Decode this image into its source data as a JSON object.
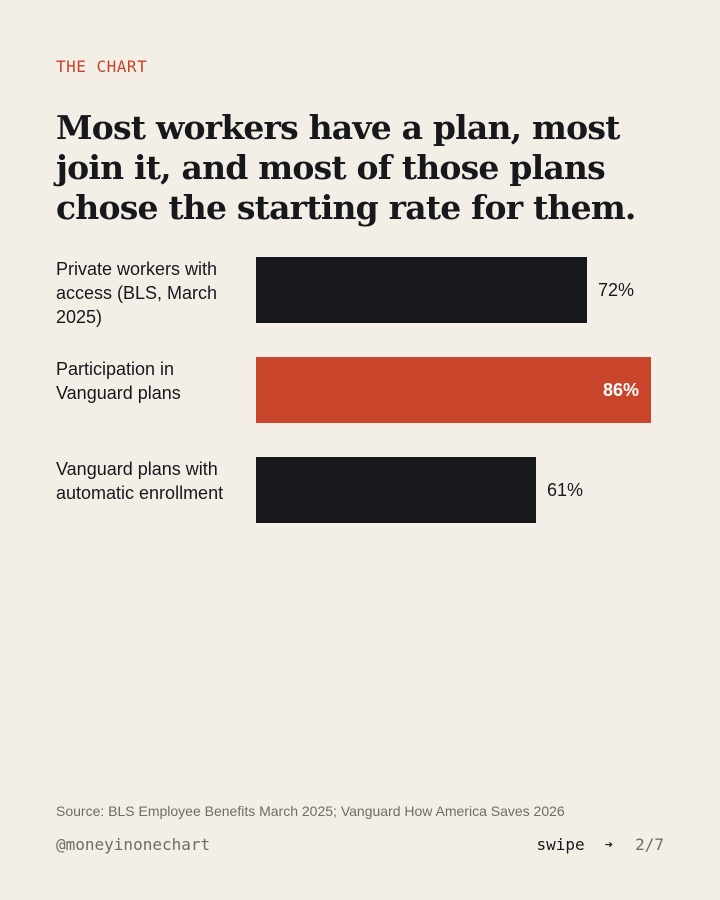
{
  "header": {
    "kicker": "THE CHART",
    "title": "Most workers have a plan, most join it, and most of those plans chose the starting rate for them."
  },
  "chart_data": {
    "type": "bar",
    "orientation": "horizontal",
    "categories": [
      "Private workers with access (BLS, March 2025)",
      "Participation in Vanguard plans",
      "Vanguard plans with automatic enrollment"
    ],
    "values": [
      72,
      86,
      61
    ],
    "value_labels": [
      "72%",
      "86%",
      "61%"
    ],
    "bar_colors": [
      "#17181c",
      "#c8442a",
      "#17181c"
    ],
    "xlim": [
      0,
      86
    ],
    "grid": false,
    "legend": "none"
  },
  "footer": {
    "source": "Source: BLS Employee Benefits March 2025; Vanguard How America Saves 2026",
    "handle": "@moneyinonechart",
    "swipe_label": "swipe",
    "arrow_icon": "right-arrow-icon",
    "page_indicator": "2/7"
  }
}
